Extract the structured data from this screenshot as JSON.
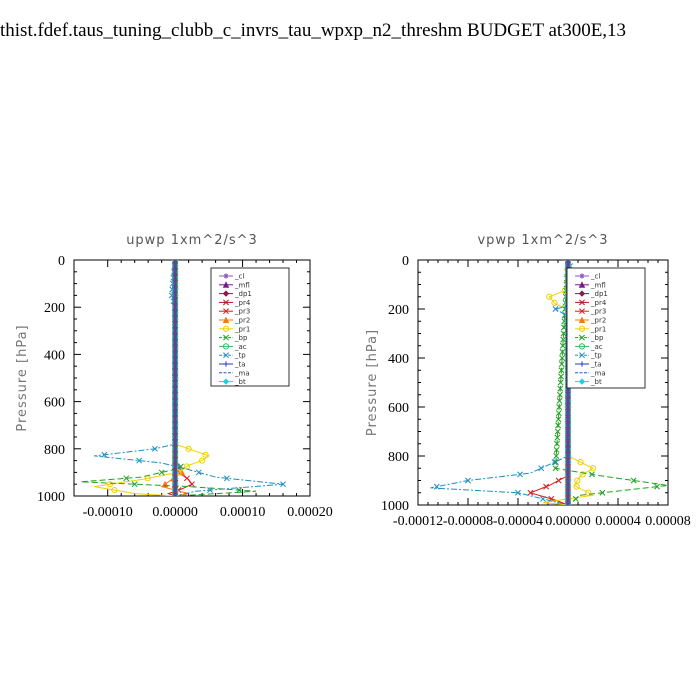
{
  "figure_title": "thist.fdef.taus_tuning_clubb_c_invrs_tau_wpxp_n2_threshm  BUDGET at300E,13",
  "chart_data": [
    {
      "type": "line",
      "title": "upwp   1xm^2/s^3",
      "xlabel": "",
      "ylabel": "Pressure [hPa]",
      "xlim": [
        -0.00015,
        0.0002
      ],
      "ylim": [
        1000,
        0
      ],
      "xticks": [
        "-0.00010",
        "0.00000",
        "0.00010",
        "0.00020"
      ],
      "xtick_values": [
        -0.0001,
        0,
        0.0001,
        0.0002
      ],
      "yticks": [
        "0",
        "200",
        "400",
        "600",
        "800",
        "1000"
      ],
      "ytick_values": [
        0,
        200,
        400,
        600,
        800,
        1000
      ],
      "legend_position": "top-right",
      "series": [
        {
          "name": "_cl",
          "color": "#8c52c4",
          "dash": "",
          "marker": "star",
          "p": [
            0,
            500,
            1000
          ],
          "x": [
            0,
            0,
            0
          ]
        },
        {
          "name": "_mfl",
          "color": "#7a1a8a",
          "dash": "",
          "marker": "tri",
          "p": [
            0,
            500,
            1000
          ],
          "x": [
            0,
            0,
            0
          ]
        },
        {
          "name": "_dp1",
          "color": "#8b1a4a",
          "dash": "",
          "marker": "diamond",
          "p": [
            0,
            500,
            1000
          ],
          "x": [
            0,
            0,
            0
          ]
        },
        {
          "name": "_pr4",
          "color": "#c01020",
          "dash": "",
          "marker": "x",
          "p": [
            0,
            500,
            1000
          ],
          "x": [
            0,
            0,
            0
          ]
        },
        {
          "name": "_pr3",
          "color": "#e01818",
          "dash": "",
          "marker": "x",
          "p": [
            0,
            850,
            900,
            930,
            950,
            970,
            990,
            1000
          ],
          "x": [
            0,
            0,
            5e-06,
            2e-05,
            2.5e-05,
            1e-05,
            -1e-05,
            0
          ]
        },
        {
          "name": "_pr2",
          "color": "#f07818",
          "dash": "",
          "marker": "tri",
          "p": [
            0,
            850,
            900,
            960,
            990,
            1000
          ],
          "x": [
            0,
            0,
            1e-05,
            -2e-05,
            2e-05,
            0
          ]
        },
        {
          "name": "_pr1",
          "color": "#f0d000",
          "dash": "",
          "marker": "circle",
          "p": [
            0,
            780,
            800,
            830,
            850,
            870,
            900,
            930,
            960,
            990,
            1000
          ],
          "x": [
            0,
            0,
            2e-05,
            5e-05,
            4e-05,
            2e-05,
            5e-06,
            -5e-05,
            -0.00012,
            -6e-05,
            0
          ]
        },
        {
          "name": "_bp",
          "color": "#20a020",
          "dash": "6 3",
          "marker": "x",
          "p": [
            0,
            850,
            880,
            920,
            940,
            960,
            980,
            1000
          ],
          "x": [
            0,
            0,
            1e-05,
            -5e-05,
            -0.00014,
            2e-05,
            0.00012,
            0
          ]
        },
        {
          "name": "_ac",
          "color": "#30c060",
          "dash": "",
          "marker": "circle",
          "p": [
            0,
            500,
            1000
          ],
          "x": [
            0,
            0,
            0
          ]
        },
        {
          "name": "_tp",
          "color": "#1a8fc0",
          "dash": "6 2 2 2",
          "marker": "x",
          "p": [
            0,
            150,
            200,
            780,
            800,
            830,
            860,
            880,
            920,
            950,
            980,
            1000
          ],
          "x": [
            0,
            -5e-06,
            0,
            0,
            -3e-05,
            -0.00012,
            -2e-05,
            1e-05,
            6e-05,
            0.00016,
            3e-05,
            0
          ]
        },
        {
          "name": "_ta",
          "color": "#2030c0",
          "dash": "",
          "marker": "plus",
          "p": [
            0,
            500,
            1000
          ],
          "x": [
            0,
            0,
            0
          ]
        },
        {
          "name": "_ma",
          "color": "#1060c0",
          "dash": "6 3",
          "marker": "none",
          "p": [
            0,
            500,
            1000
          ],
          "x": [
            0,
            0,
            0
          ]
        },
        {
          "name": "_bt",
          "color": "#20d0e0",
          "dash": "",
          "marker": "diamond",
          "p": [
            0,
            500,
            1000
          ],
          "x": [
            0,
            0,
            0
          ]
        }
      ]
    },
    {
      "type": "line",
      "title": "vpwp   1xm^2/s^3",
      "xlabel": "",
      "ylabel": "Pressure [hPa]",
      "xlim": [
        -0.00012,
        8e-05
      ],
      "ylim": [
        1000,
        0
      ],
      "xticks": [
        "-0.00012",
        "-0.00008",
        "-0.00004",
        "0.00000",
        "0.00004",
        "0.00008"
      ],
      "xtick_values": [
        -0.00012,
        -8e-05,
        -4e-05,
        0,
        4e-05,
        8e-05
      ],
      "yticks": [
        "0",
        "200",
        "400",
        "600",
        "800",
        "1000"
      ],
      "ytick_values": [
        0,
        200,
        400,
        600,
        800,
        1000
      ],
      "legend_position": "top-right",
      "series": [
        {
          "name": "_cl",
          "color": "#8c52c4",
          "dash": "",
          "marker": "star",
          "p": [
            0,
            500,
            1000
          ],
          "x": [
            0,
            0,
            0
          ]
        },
        {
          "name": "_mfl",
          "color": "#7a1a8a",
          "dash": "",
          "marker": "tri",
          "p": [
            0,
            500,
            1000
          ],
          "x": [
            0,
            0,
            0
          ]
        },
        {
          "name": "_dp1",
          "color": "#8b1a4a",
          "dash": "",
          "marker": "diamond",
          "p": [
            0,
            500,
            1000
          ],
          "x": [
            0,
            0,
            0
          ]
        },
        {
          "name": "_pr4",
          "color": "#c01020",
          "dash": "",
          "marker": "x",
          "p": [
            0,
            500,
            1000
          ],
          "x": [
            0,
            0,
            0
          ]
        },
        {
          "name": "_pr3",
          "color": "#e01818",
          "dash": "",
          "marker": "x",
          "p": [
            0,
            880,
            920,
            950,
            980,
            1000
          ],
          "x": [
            0,
            0,
            -1.5e-05,
            -3e-05,
            -1e-05,
            0
          ]
        },
        {
          "name": "_pr2",
          "color": "#f07818",
          "dash": "",
          "marker": "tri",
          "p": [
            0,
            500,
            1000
          ],
          "x": [
            0,
            0,
            0
          ]
        },
        {
          "name": "_pr1",
          "color": "#f0d000",
          "dash": "",
          "marker": "circle",
          "p": [
            0,
            120,
            150,
            180,
            200,
            800,
            850,
            880,
            920,
            960,
            990,
            1000
          ],
          "x": [
            0,
            0,
            -1.5e-05,
            -1e-05,
            0,
            0,
            2e-05,
            1e-05,
            5e-06,
            2e-05,
            -2e-05,
            0
          ]
        },
        {
          "name": "_bp",
          "color": "#20a020",
          "dash": "6 3",
          "marker": "x",
          "p": [
            0,
            850,
            880,
            920,
            960,
            1000
          ],
          "x": [
            0,
            -1e-05,
            2.5e-05,
            8e-05,
            1e-05,
            0
          ]
        },
        {
          "name": "_ac",
          "color": "#30c060",
          "dash": "",
          "marker": "circle",
          "p": [
            0,
            500,
            1000
          ],
          "x": [
            0,
            0,
            0
          ]
        },
        {
          "name": "_tp",
          "color": "#1a8fc0",
          "dash": "6 2 2 2",
          "marker": "x",
          "p": [
            0,
            150,
            170,
            200,
            230,
            800,
            870,
            900,
            930,
            950,
            1000
          ],
          "x": [
            0,
            1e-05,
            1.5e-05,
            -1e-05,
            0,
            0,
            -3e-05,
            -8e-05,
            -0.00011,
            -4e-05,
            0
          ]
        },
        {
          "name": "_ta",
          "color": "#2030c0",
          "dash": "",
          "marker": "plus",
          "p": [
            0,
            500,
            1000
          ],
          "x": [
            0,
            0,
            0
          ]
        },
        {
          "name": "_ma",
          "color": "#1060c0",
          "dash": "6 3",
          "marker": "none",
          "p": [
            0,
            500,
            1000
          ],
          "x": [
            0,
            0,
            0
          ]
        },
        {
          "name": "_bt",
          "color": "#20d0e0",
          "dash": "",
          "marker": "diamond",
          "p": [
            0,
            500,
            1000
          ],
          "x": [
            0,
            0,
            0
          ]
        }
      ]
    }
  ]
}
